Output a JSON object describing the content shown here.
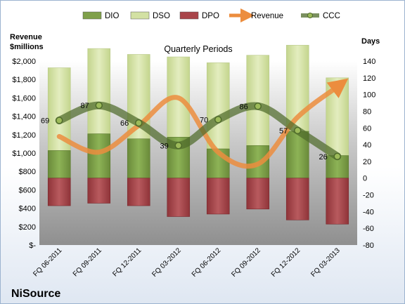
{
  "chart_data": {
    "type": "bar",
    "title": "Quarterly Periods",
    "company": "NiSource",
    "left_axis": {
      "label_line1": "Revenue",
      "label_line2": "$millions",
      "ylim": [
        0,
        2000
      ],
      "ticks": [
        0,
        200,
        400,
        600,
        800,
        1000,
        1200,
        1400,
        1600,
        1800,
        2000
      ],
      "tick_labels": [
        "$-",
        "$200",
        "$400",
        "$600",
        "$800",
        "$1,000",
        "$1,200",
        "$1,400",
        "$1,600",
        "$1,800",
        "$2,000"
      ]
    },
    "right_axis": {
      "label": "Days",
      "ylim": [
        -80,
        140
      ],
      "ticks": [
        -80,
        -60,
        -40,
        -20,
        0,
        20,
        40,
        60,
        80,
        100,
        120,
        140
      ],
      "tick_labels": [
        "-80",
        "-60",
        "-40",
        "-20",
        "0",
        "20",
        "40",
        "60",
        "80",
        "100",
        "120",
        "140"
      ]
    },
    "categories": [
      "FQ 06-2011",
      "FQ 09-2011",
      "FQ 12-2011",
      "FQ 03-2012",
      "FQ 06-2012",
      "FQ 09-2012",
      "FQ 12-2012",
      "FQ 03-2013"
    ],
    "legend": {
      "position": "top",
      "entries": [
        {
          "name": "DIO",
          "kind": "bar",
          "color": "#7fa04a"
        },
        {
          "name": "DSO",
          "kind": "bar",
          "color": "#d3e1a3"
        },
        {
          "name": "DPO",
          "kind": "bar",
          "color": "#a9454a"
        },
        {
          "name": "Revenue",
          "kind": "arrow",
          "color": "#ec8d3e"
        },
        {
          "name": "CCC",
          "kind": "line",
          "color": "#4f6b2b"
        }
      ]
    },
    "series": [
      {
        "name": "DIO",
        "axis": "right",
        "values": [
          33,
          53,
          47,
          49,
          35,
          39,
          56,
          27
        ],
        "color": "#7fa04a"
      },
      {
        "name": "DSO",
        "axis": "right",
        "values": [
          99,
          102,
          101,
          96,
          103,
          108,
          103,
          93
        ],
        "color": "#d3e1a3"
      },
      {
        "name": "DPO",
        "axis": "right",
        "values": [
          -33,
          -30,
          -33,
          -46,
          -43,
          -37,
          -50,
          -55
        ],
        "color": "#a9454a"
      },
      {
        "name": "Revenue",
        "axis": "left",
        "values": [
          1180,
          1010,
          1300,
          1600,
          1010,
          880,
          1390,
          1720
        ],
        "color": "#ec8d3e"
      },
      {
        "name": "CCC",
        "axis": "right",
        "values": [
          69,
          87,
          66,
          39,
          70,
          86,
          57,
          26
        ],
        "labels": [
          "69",
          "87",
          "66",
          "39",
          "70",
          "86",
          "57",
          "26"
        ],
        "color": "#4f6b2b"
      }
    ],
    "grid": false,
    "plot_area_color": "#a8a8a8"
  }
}
